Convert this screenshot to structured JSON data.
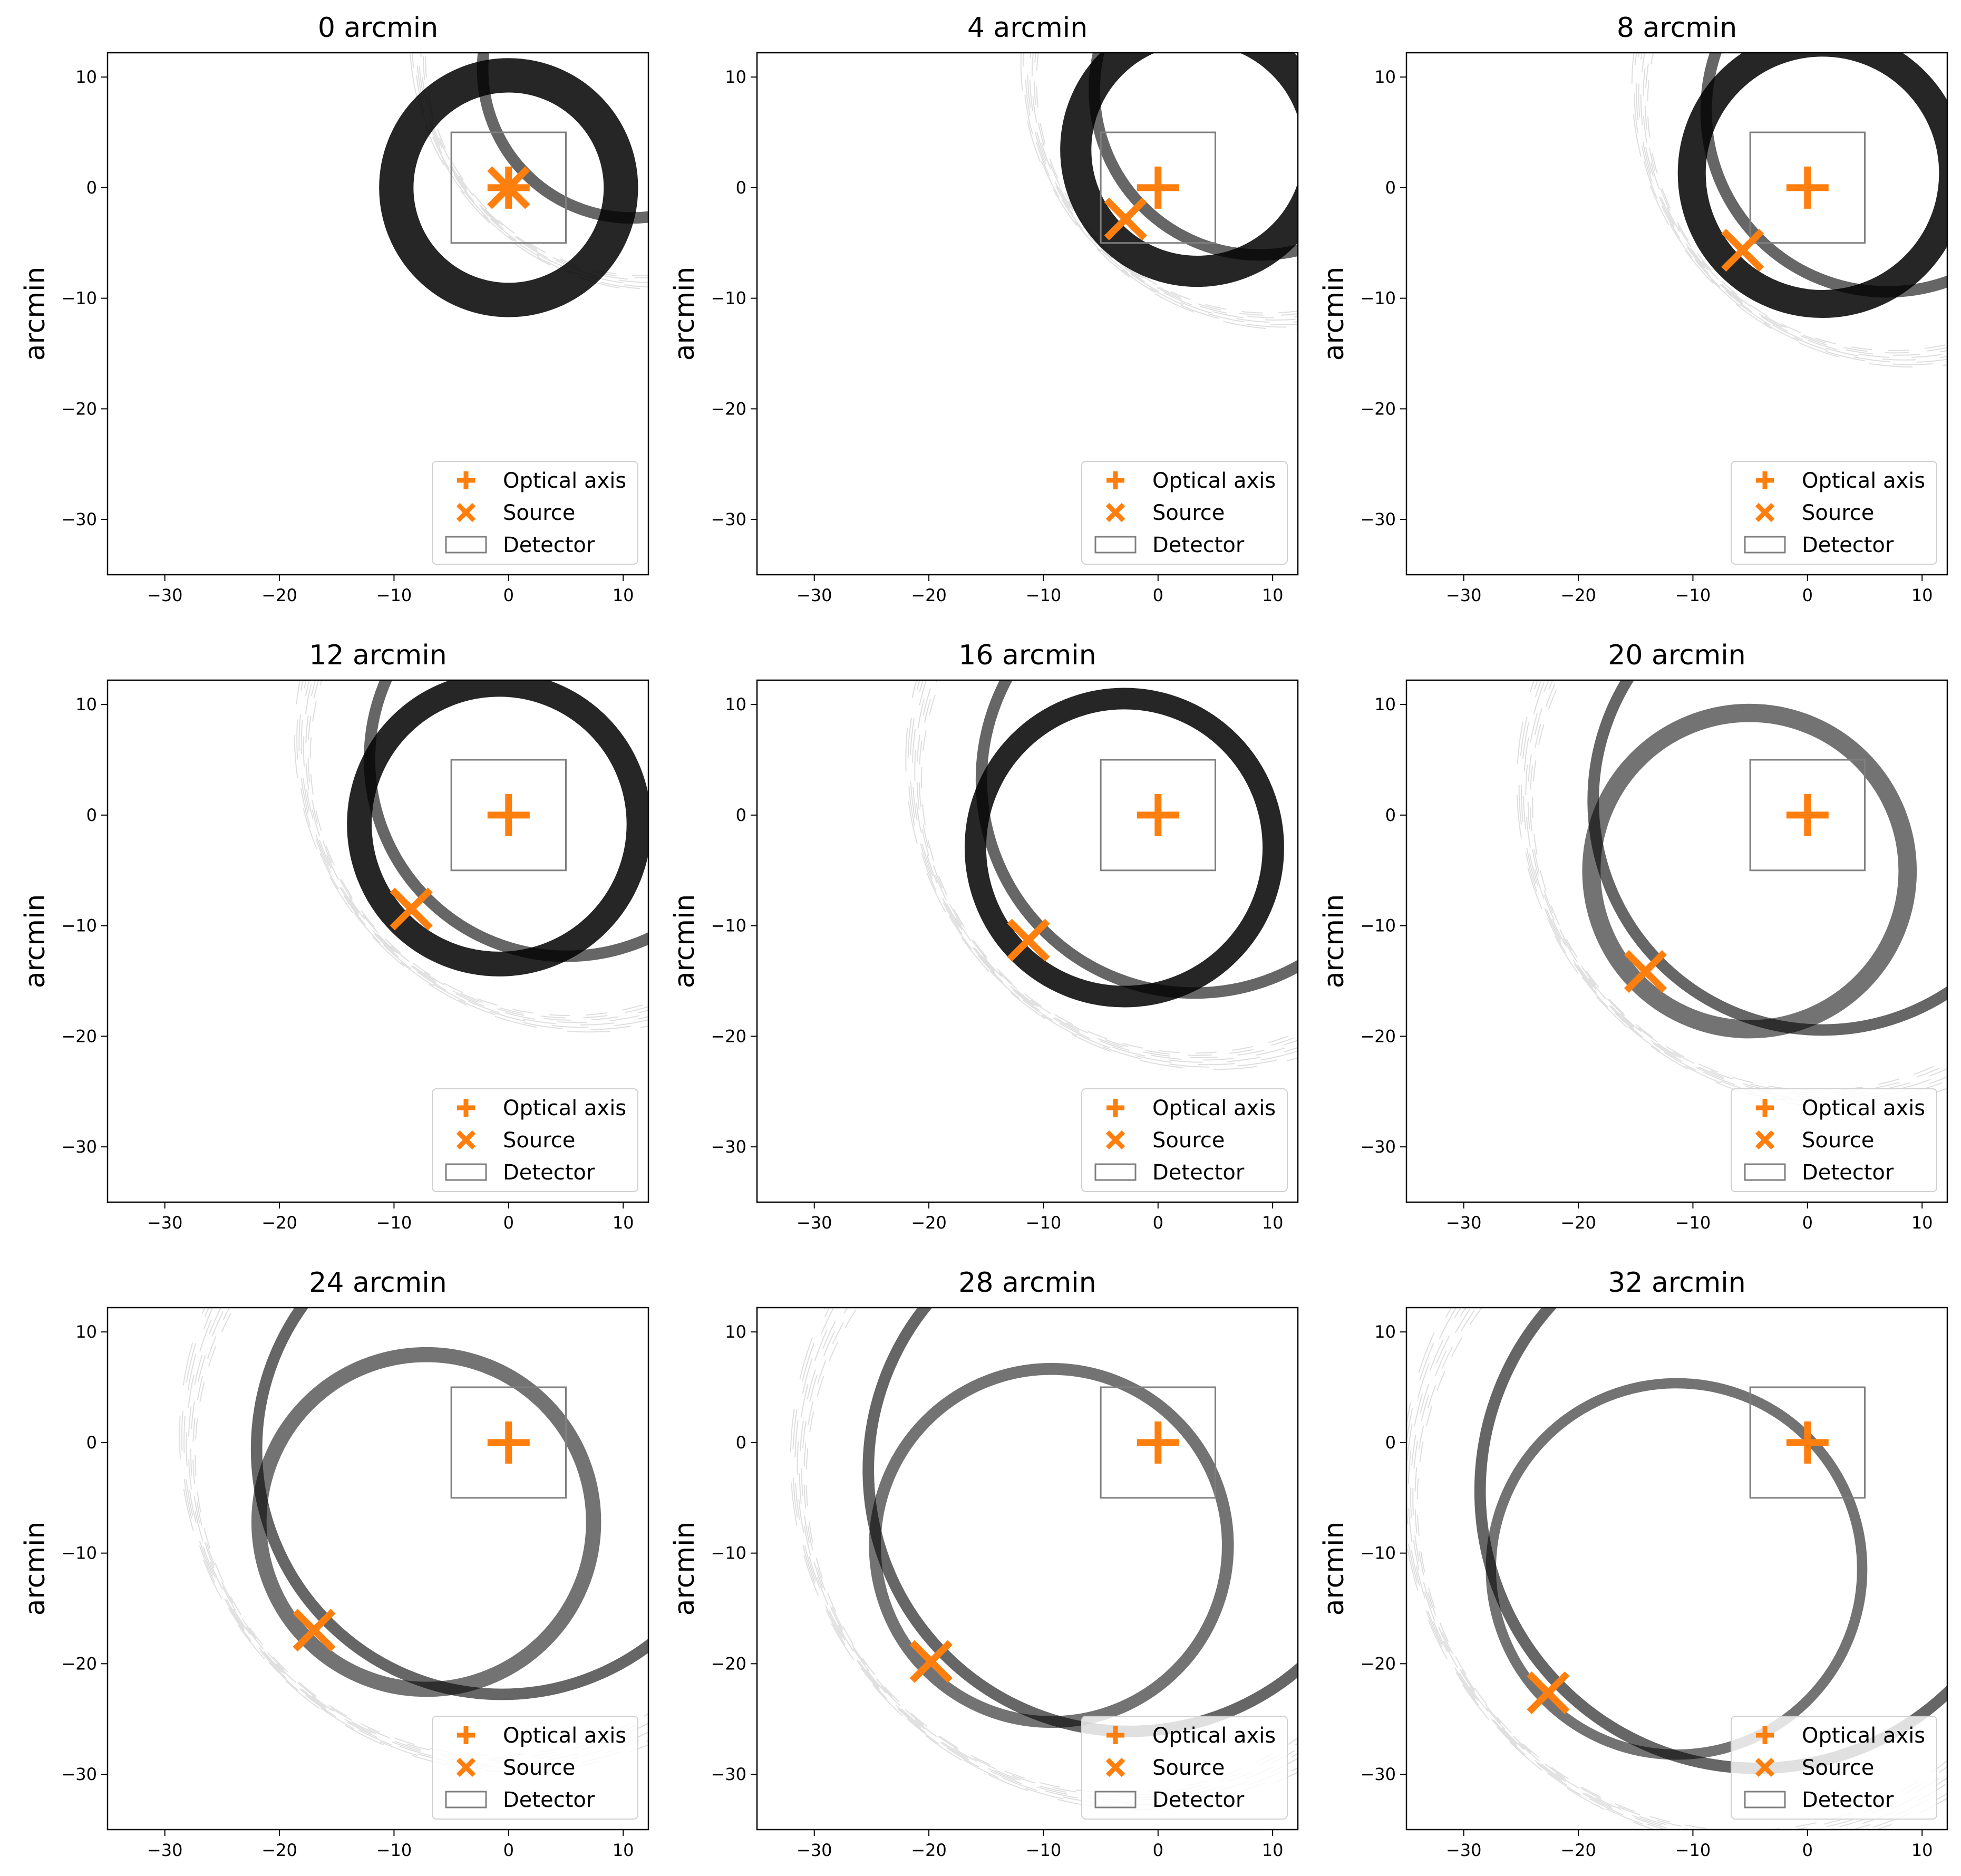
{
  "figure": {
    "rows": 3,
    "cols": 3,
    "colors": {
      "marker": "#ff7f0e",
      "detector": "#7f7f7f",
      "ring": "#000000",
      "axes": "#000000",
      "background": "#ffffff"
    }
  },
  "chart_data": [
    {
      "type": "scatter",
      "title": "0 arcmin",
      "ylabel": "arcmin",
      "xlabel": "",
      "xlim": [
        -35,
        12.2
      ],
      "ylim": [
        -35,
        12.2
      ],
      "xticks": [
        -30,
        -20,
        -10,
        0,
        10
      ],
      "yticks": [
        10,
        0,
        -10,
        -20,
        -30
      ],
      "optical_axis": [
        0,
        0
      ],
      "source": [
        0,
        0
      ],
      "detector": {
        "x": [
          -5,
          5
        ],
        "y": [
          -5,
          5
        ]
      },
      "legend": [
        "Optical axis",
        "Source",
        "Detector"
      ],
      "legend_loc": "lower right"
    },
    {
      "type": "scatter",
      "title": "4 arcmin",
      "ylabel": "arcmin",
      "xlabel": "",
      "xlim": [
        -35,
        12.2
      ],
      "ylim": [
        -35,
        12.2
      ],
      "xticks": [
        -30,
        -20,
        -10,
        0,
        10
      ],
      "yticks": [
        10,
        0,
        -10,
        -20,
        -30
      ],
      "optical_axis": [
        0,
        0
      ],
      "source": [
        -2.83,
        -2.83
      ],
      "detector": {
        "x": [
          -5,
          5
        ],
        "y": [
          -5,
          5
        ]
      },
      "legend": [
        "Optical axis",
        "Source",
        "Detector"
      ],
      "legend_loc": "lower right"
    },
    {
      "type": "scatter",
      "title": "8 arcmin",
      "ylabel": "arcmin",
      "xlabel": "",
      "xlim": [
        -35,
        12.2
      ],
      "ylim": [
        -35,
        12.2
      ],
      "xticks": [
        -30,
        -20,
        -10,
        0,
        10
      ],
      "yticks": [
        10,
        0,
        -10,
        -20,
        -30
      ],
      "optical_axis": [
        0,
        0
      ],
      "source": [
        -5.66,
        -5.66
      ],
      "detector": {
        "x": [
          -5,
          5
        ],
        "y": [
          -5,
          5
        ]
      },
      "legend": [
        "Optical axis",
        "Source",
        "Detector"
      ],
      "legend_loc": "lower right"
    },
    {
      "type": "scatter",
      "title": "12 arcmin",
      "ylabel": "arcmin",
      "xlabel": "",
      "xlim": [
        -35,
        12.2
      ],
      "ylim": [
        -35,
        12.2
      ],
      "xticks": [
        -30,
        -20,
        -10,
        0,
        10
      ],
      "yticks": [
        10,
        0,
        -10,
        -20,
        -30
      ],
      "optical_axis": [
        0,
        0
      ],
      "source": [
        -8.49,
        -8.49
      ],
      "detector": {
        "x": [
          -5,
          5
        ],
        "y": [
          -5,
          5
        ]
      },
      "legend": [
        "Optical axis",
        "Source",
        "Detector"
      ],
      "legend_loc": "lower right"
    },
    {
      "type": "scatter",
      "title": "16 arcmin",
      "ylabel": "arcmin",
      "xlabel": "",
      "xlim": [
        -35,
        12.2
      ],
      "ylim": [
        -35,
        12.2
      ],
      "xticks": [
        -30,
        -20,
        -10,
        0,
        10
      ],
      "yticks": [
        10,
        0,
        -10,
        -20,
        -30
      ],
      "optical_axis": [
        0,
        0
      ],
      "source": [
        -11.31,
        -11.31
      ],
      "detector": {
        "x": [
          -5,
          5
        ],
        "y": [
          -5,
          5
        ]
      },
      "legend": [
        "Optical axis",
        "Source",
        "Detector"
      ],
      "legend_loc": "lower right"
    },
    {
      "type": "scatter",
      "title": "20 arcmin",
      "ylabel": "arcmin",
      "xlabel": "",
      "xlim": [
        -35,
        12.2
      ],
      "ylim": [
        -35,
        12.2
      ],
      "xticks": [
        -30,
        -20,
        -10,
        0,
        10
      ],
      "yticks": [
        10,
        0,
        -10,
        -20,
        -30
      ],
      "optical_axis": [
        0,
        0
      ],
      "source": [
        -14.14,
        -14.14
      ],
      "detector": {
        "x": [
          -5,
          5
        ],
        "y": [
          -5,
          5
        ]
      },
      "legend": [
        "Optical axis",
        "Source",
        "Detector"
      ],
      "legend_loc": "lower right"
    },
    {
      "type": "scatter",
      "title": "24 arcmin",
      "ylabel": "arcmin",
      "xlabel": "",
      "xlim": [
        -35,
        12.2
      ],
      "ylim": [
        -35,
        12.2
      ],
      "xticks": [
        -30,
        -20,
        -10,
        0,
        10
      ],
      "yticks": [
        10,
        0,
        -10,
        -20,
        -30
      ],
      "optical_axis": [
        0,
        0
      ],
      "source": [
        -16.97,
        -16.97
      ],
      "detector": {
        "x": [
          -5,
          5
        ],
        "y": [
          -5,
          5
        ]
      },
      "legend": [
        "Optical axis",
        "Source",
        "Detector"
      ],
      "legend_loc": "lower right"
    },
    {
      "type": "scatter",
      "title": "28 arcmin",
      "ylabel": "arcmin",
      "xlabel": "",
      "xlim": [
        -35,
        12.2
      ],
      "ylim": [
        -35,
        12.2
      ],
      "xticks": [
        -30,
        -20,
        -10,
        0,
        10
      ],
      "yticks": [
        10,
        0,
        -10,
        -20,
        -30
      ],
      "optical_axis": [
        0,
        0
      ],
      "source": [
        -19.8,
        -19.8
      ],
      "detector": {
        "x": [
          -5,
          5
        ],
        "y": [
          -5,
          5
        ]
      },
      "legend": [
        "Optical axis",
        "Source",
        "Detector"
      ],
      "legend_loc": "lower right"
    },
    {
      "type": "scatter",
      "title": "32 arcmin",
      "ylabel": "arcmin",
      "xlabel": "",
      "xlim": [
        -35,
        12.2
      ],
      "ylim": [
        -35,
        12.2
      ],
      "xticks": [
        -30,
        -20,
        -10,
        0,
        10
      ],
      "yticks": [
        10,
        0,
        -10,
        -20,
        -30
      ],
      "optical_axis": [
        0,
        0
      ],
      "source": [
        -22.63,
        -22.63
      ],
      "detector": {
        "x": [
          -5,
          5
        ],
        "y": [
          -5,
          5
        ]
      },
      "legend": [
        "Optical axis",
        "Source",
        "Detector"
      ],
      "legend_loc": "lower right"
    }
  ]
}
